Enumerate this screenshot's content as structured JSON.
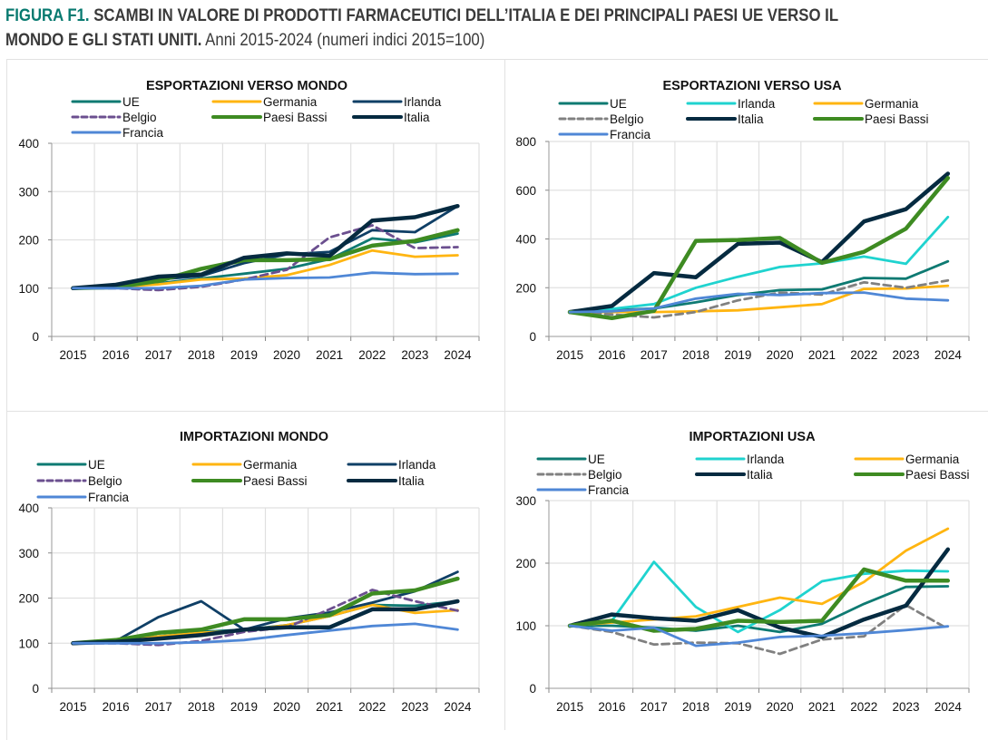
{
  "figure": {
    "label": "FIGURA F1.",
    "title_bold": "SCAMBI IN VALORE DI PRODOTTI FARMACEUTICI DELL’ITALIA E DEI PRINCIPALI PAESI UE VERSO IL",
    "title_bold_line2": "MONDO E GLI STATI UNITI.",
    "subtitle": "Anni 2015-2024 (numeri indici 2015=100)"
  },
  "colors": {
    "UE": "#0e7a72",
    "Germania": "#ffb511",
    "Irlanda_mondo": "#0f3f66",
    "Irlanda_usa": "#1fd3cf",
    "Belgio_mondo": "#6b4f8f",
    "Belgio_usa": "#808080",
    "Paesi Bassi": "#3e8b22",
    "Italia": "#052a40",
    "Francia": "#4f87d6"
  },
  "chart_data": [
    {
      "type": "line",
      "title": "ESPORTAZIONI VERSO MONDO",
      "xlabel": "",
      "ylabel": "",
      "categories": [
        "2015",
        "2016",
        "2017",
        "2018",
        "2019",
        "2020",
        "2021",
        "2022",
        "2023",
        "2024"
      ],
      "yticks": [
        "0",
        "100",
        "200",
        "300",
        "400"
      ],
      "ylim": [
        0,
        400
      ],
      "grid": true,
      "legend": "top",
      "series": [
        {
          "name": "UE",
          "color": "#0e7a72",
          "dashed": false,
          "width": "normal",
          "values": [
            100,
            103,
            110,
            120,
            130,
            140,
            160,
            203,
            195,
            213
          ]
        },
        {
          "name": "Germania",
          "color": "#ffb511",
          "dashed": false,
          "width": "normal",
          "values": [
            100,
            102,
            108,
            118,
            120,
            127,
            148,
            178,
            165,
            168
          ]
        },
        {
          "name": "Irlanda",
          "color": "#0f3f66",
          "dashed": false,
          "width": "normal",
          "values": [
            100,
            105,
            118,
            125,
            152,
            170,
            175,
            220,
            216,
            270
          ]
        },
        {
          "name": "Belgio",
          "color": "#6b4f8f",
          "dashed": true,
          "width": "normal",
          "values": [
            100,
            100,
            96,
            103,
            118,
            138,
            205,
            230,
            183,
            185
          ]
        },
        {
          "name": "Paesi Bassi",
          "color": "#3e8b22",
          "dashed": false,
          "width": "thick",
          "values": [
            100,
            102,
            115,
            140,
            158,
            158,
            160,
            188,
            198,
            220
          ]
        },
        {
          "name": "Italia",
          "color": "#052a40",
          "dashed": false,
          "width": "thick",
          "values": [
            100,
            107,
            124,
            128,
            163,
            172,
            167,
            240,
            247,
            270
          ]
        },
        {
          "name": "Francia",
          "color": "#4f87d6",
          "dashed": false,
          "width": "normal",
          "values": [
            100,
            100,
            100,
            105,
            118,
            121,
            122,
            132,
            129,
            130
          ]
        }
      ]
    },
    {
      "type": "line",
      "title": "ESPORTAZIONI VERSO USA",
      "xlabel": "",
      "ylabel": "",
      "categories": [
        "2015",
        "2016",
        "2017",
        "2018",
        "2019",
        "2020",
        "2021",
        "2022",
        "2023",
        "2024"
      ],
      "yticks": [
        "0",
        "200",
        "400",
        "600",
        "800"
      ],
      "ylim": [
        0,
        800
      ],
      "grid": true,
      "legend": "top",
      "series": [
        {
          "name": "UE",
          "color": "#0e7a72",
          "dashed": false,
          "width": "normal",
          "values": [
            100,
            108,
            115,
            140,
            170,
            190,
            193,
            240,
            237,
            308
          ]
        },
        {
          "name": "Irlanda",
          "color": "#1fd3cf",
          "dashed": false,
          "width": "normal",
          "values": [
            100,
            113,
            133,
            200,
            245,
            285,
            300,
            328,
            298,
            490
          ]
        },
        {
          "name": "Germania",
          "color": "#ffb511",
          "dashed": false,
          "width": "normal",
          "values": [
            100,
            100,
            100,
            103,
            107,
            120,
            133,
            195,
            197,
            208
          ]
        },
        {
          "name": "Belgio",
          "color": "#808080",
          "dashed": true,
          "width": "normal",
          "values": [
            100,
            90,
            78,
            100,
            148,
            180,
            172,
            222,
            200,
            230
          ]
        },
        {
          "name": "Italia",
          "color": "#052a40",
          "dashed": false,
          "width": "thick",
          "values": [
            100,
            125,
            260,
            243,
            380,
            385,
            305,
            472,
            522,
            668
          ]
        },
        {
          "name": "Paesi Bassi",
          "color": "#3e8b22",
          "dashed": false,
          "width": "thick",
          "values": [
            100,
            75,
            105,
            392,
            396,
            404,
            302,
            347,
            442,
            650
          ]
        },
        {
          "name": "Francia",
          "color": "#4f87d6",
          "dashed": false,
          "width": "normal",
          "values": [
            100,
            103,
            115,
            155,
            175,
            170,
            178,
            180,
            155,
            148
          ]
        }
      ]
    },
    {
      "type": "line",
      "title": "IMPORTAZIONI MONDO",
      "xlabel": "",
      "ylabel": "",
      "categories": [
        "2015",
        "2016",
        "2017",
        "2018",
        "2019",
        "2020",
        "2021",
        "2022",
        "2023",
        "2024"
      ],
      "yticks": [
        "0",
        "100",
        "200",
        "300",
        "400"
      ],
      "ylim": [
        0,
        400
      ],
      "grid": true,
      "legend": "top",
      "series": [
        {
          "name": "UE",
          "color": "#0e7a72",
          "dashed": false,
          "width": "normal",
          "values": [
            100,
            103,
            115,
            125,
            130,
            140,
            160,
            185,
            183,
            193
          ]
        },
        {
          "name": "Germania",
          "color": "#ffb511",
          "dashed": false,
          "width": "normal",
          "values": [
            100,
            103,
            115,
            123,
            128,
            140,
            160,
            185,
            167,
            173
          ]
        },
        {
          "name": "Irlanda",
          "color": "#0f3f66",
          "dashed": false,
          "width": "normal",
          "values": [
            100,
            105,
            158,
            193,
            130,
            155,
            168,
            190,
            215,
            258
          ]
        },
        {
          "name": "Belgio",
          "color": "#6b4f8f",
          "dashed": true,
          "width": "normal",
          "values": [
            100,
            100,
            96,
            105,
            125,
            135,
            175,
            218,
            193,
            172
          ]
        },
        {
          "name": "Paesi Bassi",
          "color": "#3e8b22",
          "dashed": false,
          "width": "thick",
          "values": [
            100,
            107,
            123,
            130,
            153,
            153,
            162,
            210,
            217,
            243
          ]
        },
        {
          "name": "Italia",
          "color": "#052a40",
          "dashed": false,
          "width": "thick",
          "values": [
            100,
            103,
            110,
            118,
            130,
            135,
            135,
            175,
            175,
            193
          ]
        },
        {
          "name": "Francia",
          "color": "#4f87d6",
          "dashed": false,
          "width": "normal",
          "values": [
            100,
            100,
            100,
            102,
            107,
            118,
            128,
            138,
            143,
            130
          ]
        }
      ]
    },
    {
      "type": "line",
      "title": "IMPORTAZIONI USA",
      "xlabel": "",
      "ylabel": "",
      "categories": [
        "2015",
        "2016",
        "2017",
        "2018",
        "2019",
        "2020",
        "2021",
        "2022",
        "2023",
        "2024"
      ],
      "yticks": [
        "0",
        "100",
        "200",
        "300"
      ],
      "ylim": [
        0,
        300
      ],
      "grid": true,
      "legend": "top",
      "series": [
        {
          "name": "UE",
          "color": "#0e7a72",
          "dashed": false,
          "width": "normal",
          "values": [
            100,
            100,
            97,
            92,
            100,
            90,
            103,
            135,
            162,
            163
          ]
        },
        {
          "name": "Irlanda",
          "color": "#1fd3cf",
          "dashed": false,
          "width": "normal",
          "values": [
            100,
            108,
            202,
            130,
            90,
            125,
            171,
            183,
            188,
            187
          ]
        },
        {
          "name": "Germania",
          "color": "#ffb511",
          "dashed": false,
          "width": "normal",
          "values": [
            100,
            105,
            110,
            115,
            130,
            145,
            135,
            170,
            220,
            255
          ]
        },
        {
          "name": "Belgio",
          "color": "#808080",
          "dashed": true,
          "width": "normal",
          "values": [
            100,
            90,
            70,
            73,
            72,
            55,
            78,
            83,
            133,
            95
          ]
        },
        {
          "name": "Italia",
          "color": "#052a40",
          "dashed": false,
          "width": "thick",
          "values": [
            100,
            118,
            112,
            108,
            125,
            97,
            82,
            110,
            132,
            222
          ]
        },
        {
          "name": "Paesi Bassi",
          "color": "#3e8b22",
          "dashed": false,
          "width": "thick",
          "values": [
            100,
            108,
            92,
            95,
            108,
            106,
            108,
            190,
            172,
            172
          ]
        },
        {
          "name": "Francia",
          "color": "#4f87d6",
          "dashed": false,
          "width": "normal",
          "values": [
            100,
            92,
            97,
            68,
            73,
            82,
            84,
            88,
            93,
            99
          ]
        }
      ]
    }
  ]
}
